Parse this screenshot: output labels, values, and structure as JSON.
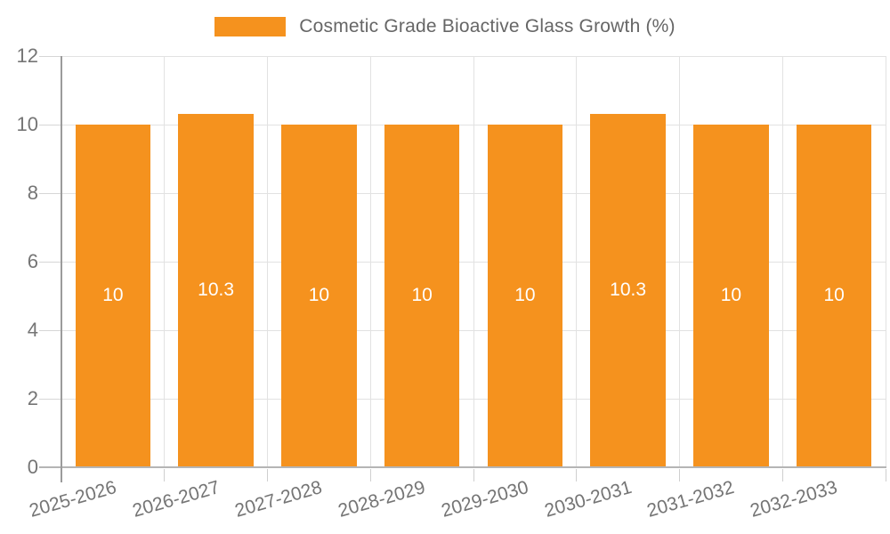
{
  "legend": {
    "label": "Cosmetic Grade Bioactive Glass Growth (%)",
    "swatch_color": "#f5921e"
  },
  "chart_data": {
    "type": "bar",
    "title": "Cosmetic Grade Bioactive Glass Growth (%)",
    "categories": [
      "2025-2026",
      "2026-2027",
      "2027-2028",
      "2028-2029",
      "2029-2030",
      "2030-2031",
      "2031-2032",
      "2032-2033"
    ],
    "values": [
      10,
      10.3,
      10,
      10,
      10,
      10.3,
      10,
      10
    ],
    "bar_labels": [
      "10",
      "10.3",
      "10",
      "10",
      "10",
      "10.3",
      "10",
      "10"
    ],
    "xlabel": "",
    "ylabel": "",
    "ylim": [
      0,
      12
    ],
    "yticks": [
      0,
      2,
      4,
      6,
      8,
      10,
      12
    ],
    "grid": true,
    "legend_position": "top",
    "bar_color": "#f5921e",
    "value_label_color": "#ffffff",
    "axis_text_color": "#757575"
  }
}
